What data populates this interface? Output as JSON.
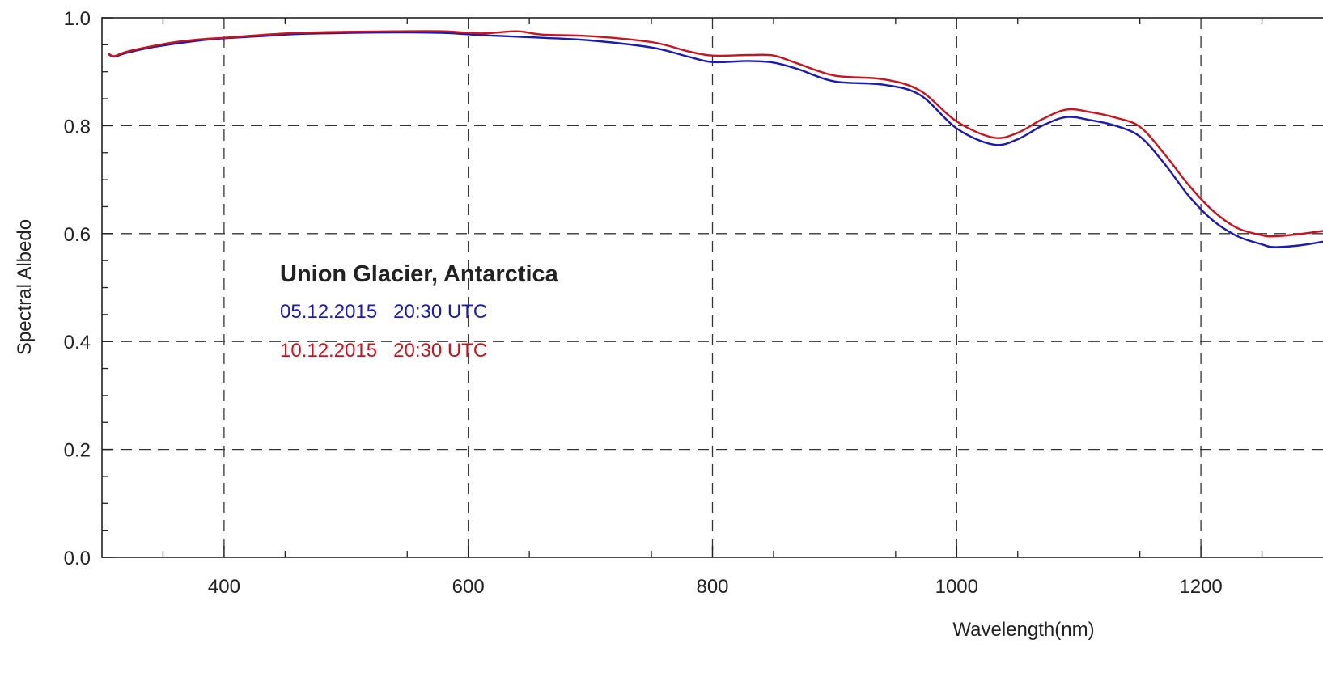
{
  "chart_data": {
    "type": "line",
    "xlabel": "Wavelength(nm)",
    "ylabel": "Spectral Albedo",
    "xlim": [
      300,
      1300
    ],
    "ylim": [
      0.0,
      1.0
    ],
    "x_ticks": [
      400,
      600,
      800,
      1000,
      1200
    ],
    "x_tick_labels": [
      "400",
      "600",
      "800",
      "1000",
      "1200"
    ],
    "y_ticks": [
      0.0,
      0.2,
      0.4,
      0.6,
      0.8,
      1.0
    ],
    "y_tick_labels": [
      "0.0",
      "0.2",
      "0.4",
      "0.6",
      "0.8",
      "1.0"
    ],
    "grid": true,
    "legend": {
      "title": "Union Glacier, Antarctica",
      "placement": "center-left",
      "entries": [
        "05.12.2015   20:30 UTC",
        "10.12.2015   20:30 UTC"
      ]
    },
    "series": [
      {
        "name": "05.12.2015   20:30 UTC",
        "color": "#1a1ab4",
        "x": [
          305,
          310,
          320,
          340,
          360,
          380,
          400,
          430,
          460,
          500,
          540,
          580,
          610,
          640,
          660,
          700,
          750,
          780,
          800,
          830,
          850,
          870,
          900,
          940,
          970,
          1000,
          1030,
          1050,
          1070,
          1090,
          1110,
          1130,
          1150,
          1170,
          1190,
          1210,
          1230,
          1250,
          1260,
          1280,
          1300
        ],
        "y": [
          0.933,
          0.928,
          0.935,
          0.945,
          0.952,
          0.958,
          0.962,
          0.966,
          0.97,
          0.972,
          0.973,
          0.972,
          0.968,
          0.965,
          0.963,
          0.958,
          0.945,
          0.928,
          0.918,
          0.92,
          0.917,
          0.905,
          0.882,
          0.876,
          0.857,
          0.795,
          0.765,
          0.775,
          0.8,
          0.816,
          0.81,
          0.8,
          0.78,
          0.73,
          0.67,
          0.624,
          0.595,
          0.58,
          0.575,
          0.578,
          0.585
        ]
      },
      {
        "name": "10.12.2015   20:30 UTC",
        "color": "#c8141e",
        "x": [
          305,
          310,
          320,
          340,
          360,
          380,
          400,
          430,
          460,
          500,
          540,
          580,
          610,
          640,
          660,
          700,
          750,
          780,
          800,
          830,
          850,
          870,
          900,
          940,
          970,
          1000,
          1030,
          1050,
          1070,
          1090,
          1110,
          1130,
          1150,
          1170,
          1190,
          1210,
          1230,
          1250,
          1260,
          1280,
          1300
        ],
        "y": [
          0.934,
          0.929,
          0.937,
          0.947,
          0.955,
          0.96,
          0.963,
          0.968,
          0.972,
          0.974,
          0.975,
          0.975,
          0.971,
          0.975,
          0.969,
          0.966,
          0.955,
          0.938,
          0.93,
          0.931,
          0.93,
          0.915,
          0.893,
          0.886,
          0.865,
          0.808,
          0.778,
          0.787,
          0.812,
          0.83,
          0.825,
          0.815,
          0.798,
          0.748,
          0.69,
          0.642,
          0.61,
          0.597,
          0.595,
          0.599,
          0.605
        ]
      }
    ]
  }
}
